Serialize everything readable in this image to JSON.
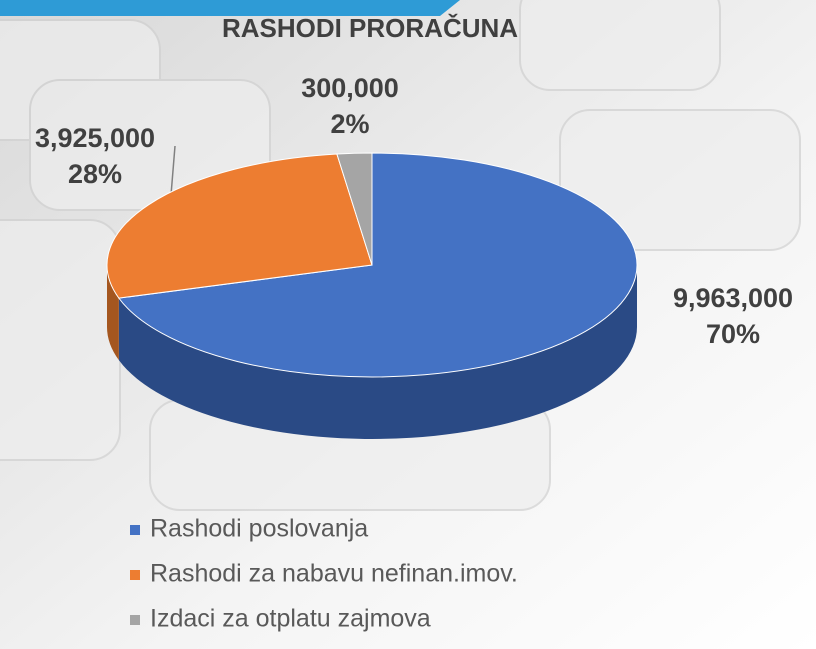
{
  "chart_data": {
    "type": "pie3d",
    "title": "RASHODI PRORAČUNA",
    "categories": [
      "Rashodi poslovanja",
      "Rashodi za nabavu nefinan.imov.",
      "Izdaci za otplatu zajmova"
    ],
    "values": [
      9963000,
      3925000,
      300000
    ],
    "value_labels": [
      "9,963,000",
      "3,925,000",
      "300,000"
    ],
    "percents": [
      {
        "value": 70,
        "label": "70%"
      },
      {
        "value": 28,
        "label": "28%"
      },
      {
        "value": 2,
        "label": "2%"
      }
    ],
    "colors": [
      "#4472c4",
      "#ed7d31",
      "#a5a5a5"
    ],
    "side_colors": [
      "#2a4a85",
      "#a4561f",
      "#707070"
    ]
  }
}
